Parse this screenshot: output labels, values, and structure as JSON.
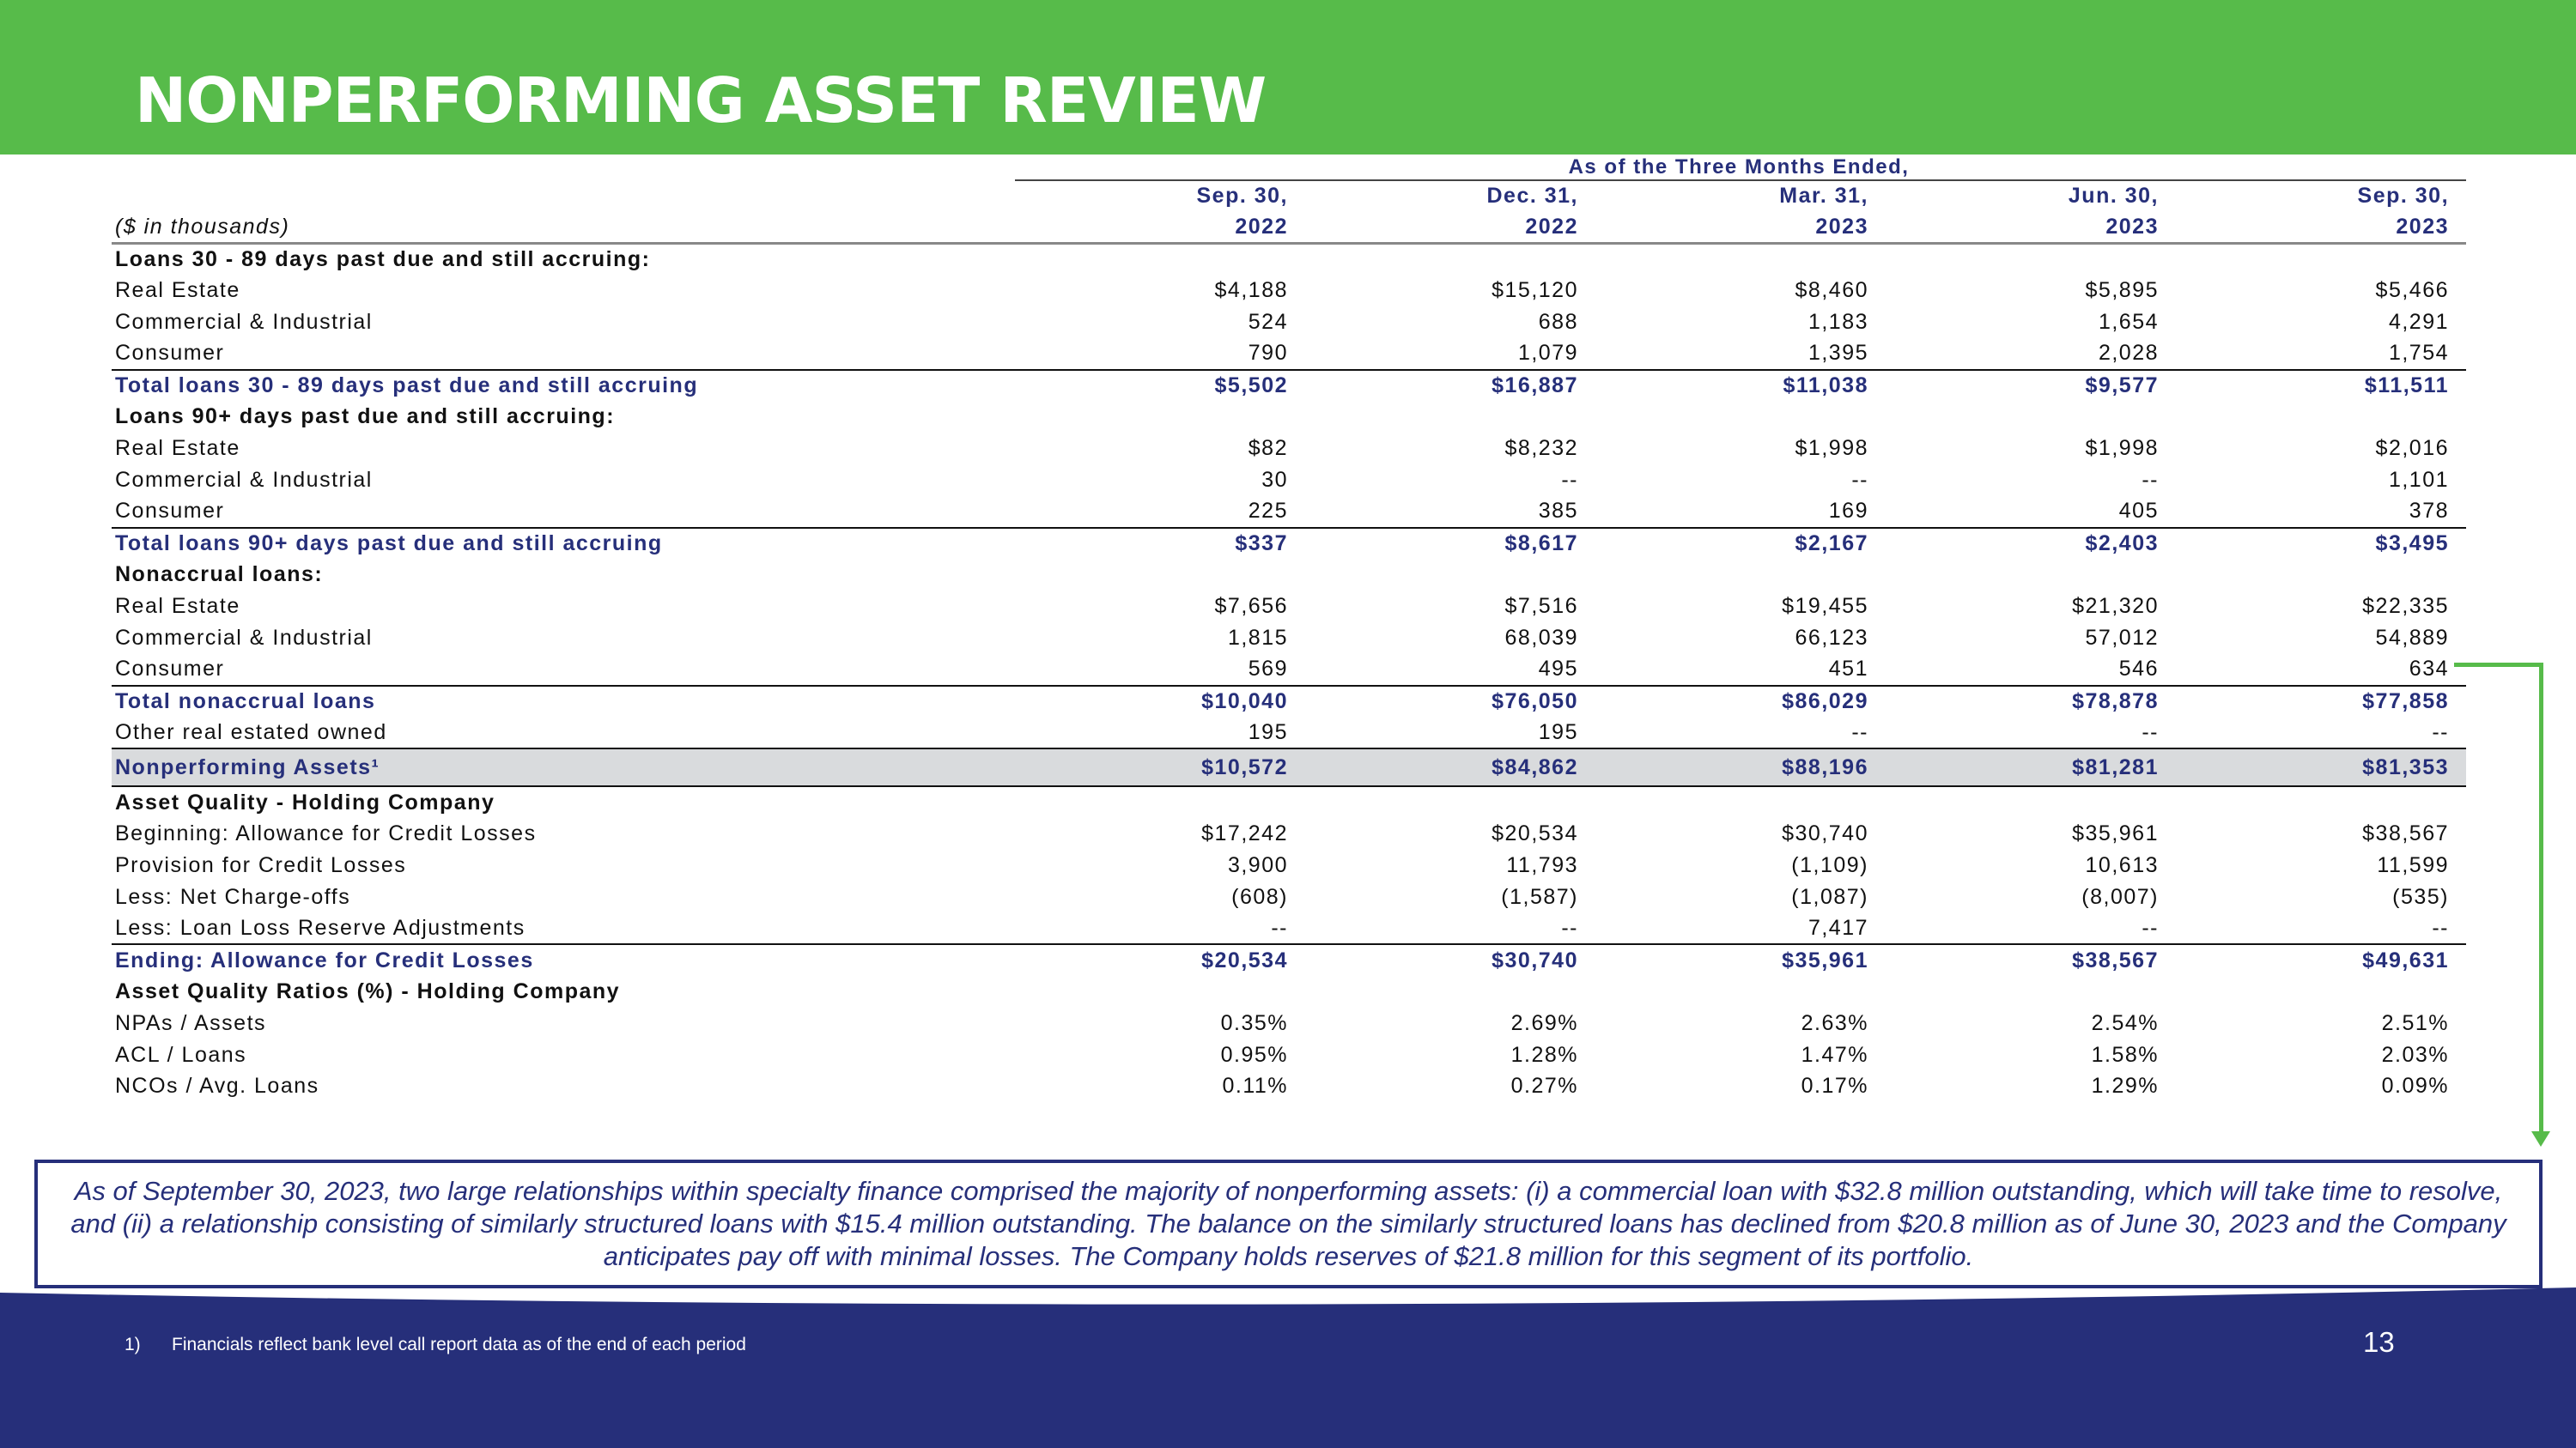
{
  "header": {
    "title": "NONPERFORMING ASSET REVIEW"
  },
  "table": {
    "super_header": "As of the Three Months Ended,",
    "units_label": "($ in thousands)",
    "periods": [
      {
        "month": "Sep. 30,",
        "year": "2022"
      },
      {
        "month": "Dec. 31,",
        "year": "2022"
      },
      {
        "month": "Mar. 31,",
        "year": "2023"
      },
      {
        "month": "Jun. 30,",
        "year": "2023"
      },
      {
        "month": "Sep. 30,",
        "year": "2023"
      }
    ],
    "rows": [
      {
        "type": "section",
        "label": "Loans 30 - 89 days past due and still accruing:"
      },
      {
        "type": "data",
        "label": "Real Estate",
        "values": [
          "$4,188",
          "$15,120",
          "$8,460",
          "$5,895",
          "$5,466"
        ]
      },
      {
        "type": "data",
        "label": "Commercial & Industrial",
        "values": [
          "524",
          "688",
          "1,183",
          "1,654",
          "4,291"
        ]
      },
      {
        "type": "data",
        "label": "Consumer",
        "values": [
          "790",
          "1,079",
          "1,395",
          "2,028",
          "1,754"
        ]
      },
      {
        "type": "total",
        "label": "Total loans 30 - 89 days past due and still accruing",
        "values": [
          "$5,502",
          "$16,887",
          "$11,038",
          "$9,577",
          "$11,511"
        ]
      },
      {
        "type": "section",
        "label": "Loans 90+ days past due and still accruing:"
      },
      {
        "type": "data",
        "label": "Real Estate",
        "values": [
          "$82",
          "$8,232",
          "$1,998",
          "$1,998",
          "$2,016"
        ]
      },
      {
        "type": "data",
        "label": "Commercial & Industrial",
        "values": [
          "30",
          "--",
          "--",
          "--",
          "1,101"
        ]
      },
      {
        "type": "data",
        "label": "Consumer",
        "values": [
          "225",
          "385",
          "169",
          "405",
          "378"
        ]
      },
      {
        "type": "total",
        "label": "Total loans 90+ days past due and still accruing",
        "values": [
          "$337",
          "$8,617",
          "$2,167",
          "$2,403",
          "$3,495"
        ]
      },
      {
        "type": "section",
        "label": "Nonaccrual loans:"
      },
      {
        "type": "data",
        "label": "Real Estate",
        "values": [
          "$7,656",
          "$7,516",
          "$19,455",
          "$21,320",
          "$22,335"
        ]
      },
      {
        "type": "data",
        "label": "Commercial & Industrial",
        "values": [
          "1,815",
          "68,039",
          "66,123",
          "57,012",
          "54,889"
        ]
      },
      {
        "type": "data",
        "label": "Consumer",
        "values": [
          "569",
          "495",
          "451",
          "546",
          "634"
        ]
      },
      {
        "type": "total",
        "label": "Total nonaccrual loans",
        "values": [
          "$10,040",
          "$76,050",
          "$86,029",
          "$78,878",
          "$77,858"
        ]
      },
      {
        "type": "data",
        "label": "Other real estated owned",
        "values": [
          "195",
          "195",
          "--",
          "--",
          "--"
        ]
      },
      {
        "type": "npa",
        "label": "Nonperforming Assets¹",
        "values": [
          "$10,572",
          "$84,862",
          "$88,196",
          "$81,281",
          "$81,353"
        ]
      },
      {
        "type": "section",
        "label": "Asset Quality - Holding Company"
      },
      {
        "type": "data",
        "label": "Beginning: Allowance for Credit Losses",
        "values": [
          "$17,242",
          "$20,534",
          "$30,740",
          "$35,961",
          "$38,567"
        ]
      },
      {
        "type": "data",
        "label": "Provision for Credit Losses",
        "values": [
          "3,900",
          "11,793",
          "(1,109)",
          "10,613",
          "11,599"
        ]
      },
      {
        "type": "data",
        "label": "Less: Net Charge-offs",
        "values": [
          "(608)",
          "(1,587)",
          "(1,087)",
          "(8,007)",
          "(535)"
        ]
      },
      {
        "type": "data",
        "label": "Less: Loan Loss Reserve Adjustments",
        "values": [
          "--",
          "--",
          "7,417",
          "--",
          "--"
        ]
      },
      {
        "type": "total",
        "label": "Ending: Allowance for Credit Losses",
        "values": [
          "$20,534",
          "$30,740",
          "$35,961",
          "$38,567",
          "$49,631"
        ]
      },
      {
        "type": "section",
        "label": "Asset Quality Ratios (%) - Holding Company"
      },
      {
        "type": "data",
        "label": "NPAs / Assets",
        "values": [
          "0.35%",
          "2.69%",
          "2.63%",
          "2.54%",
          "2.51%"
        ]
      },
      {
        "type": "data",
        "label": "ACL / Loans",
        "values": [
          "0.95%",
          "1.28%",
          "1.47%",
          "1.58%",
          "2.03%"
        ]
      },
      {
        "type": "data",
        "label": "NCOs / Avg. Loans",
        "values": [
          "0.11%",
          "0.27%",
          "0.17%",
          "1.29%",
          "0.09%"
        ]
      }
    ]
  },
  "callout": {
    "text": "As of September 30, 2023, two large relationships within specialty finance comprised the majority of nonperforming assets: (i) a commercial loan with $32.8 million outstanding, which will take time to resolve, and (ii) a relationship consisting of similarly structured loans with $15.4 million outstanding.  The balance on the similarly structured loans has declined from $20.8 million as of June 30, 2023 and the Company anticipates pay off with minimal losses. The Company holds reserves of $21.8 million for this segment of its portfolio."
  },
  "footer": {
    "footnote_number": "1)",
    "footnote_text": "Financials reflect bank level call report data as of the end of each period",
    "page_number": "13"
  },
  "colors": {
    "brand_green": "#57bb4a",
    "brand_navy": "#262f7a",
    "npa_highlight": "#d9dbdd"
  }
}
